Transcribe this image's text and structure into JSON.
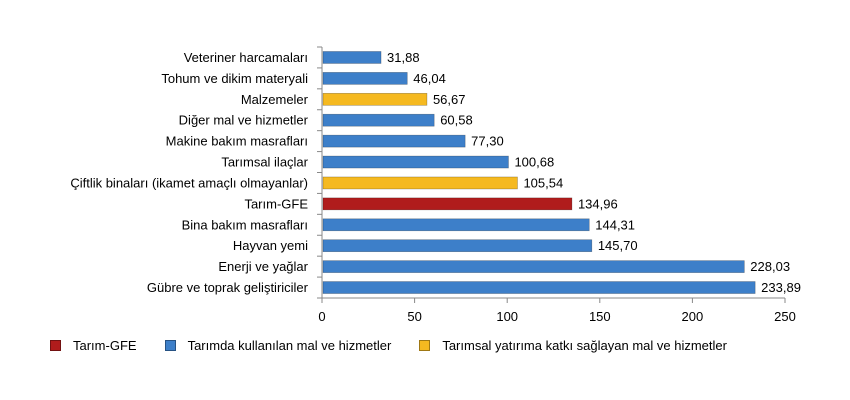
{
  "chart_data": {
    "type": "bar",
    "orientation": "horizontal",
    "categories": [
      "Veteriner harcamaları",
      "Tohum ve dikim materyali",
      "Malzemeler",
      "Diğer mal ve hizmetler",
      "Makine bakım masrafları",
      "Tarımsal ilaçlar",
      "Çiftlik binaları (ikamet amaçlı olmayanlar)",
      "Tarım-GFE",
      "Bina bakım masrafları",
      "Hayvan yemi",
      "Enerji ve yağlar",
      "Gübre ve toprak geliştiriciler"
    ],
    "values": [
      31.88,
      46.04,
      56.67,
      60.58,
      77.3,
      100.68,
      105.54,
      134.96,
      144.31,
      145.7,
      228.03,
      233.89
    ],
    "value_labels": [
      "31,88",
      "46,04",
      "56,67",
      "60,58",
      "77,30",
      "100,68",
      "105,54",
      "134,96",
      "144,31",
      "145,70",
      "228,03",
      "233,89"
    ],
    "groups": [
      "services",
      "services",
      "investment",
      "services",
      "services",
      "services",
      "investment",
      "index",
      "services",
      "services",
      "services",
      "services"
    ],
    "xlim": [
      0,
      250
    ],
    "xticks": [
      0,
      50,
      100,
      150,
      200,
      250
    ],
    "grid": false,
    "legend_position": "bottom",
    "legend": [
      {
        "key": "index",
        "label": "Tarım-GFE",
        "color": "#b01c1c"
      },
      {
        "key": "services",
        "label": "Tarımda kullanılan mal ve hizmetler",
        "color": "#3d7fc9"
      },
      {
        "key": "investment",
        "label": "Tarımsal yatırıma katkı sağlayan mal ve hizmetler",
        "color": "#f5b920"
      }
    ]
  }
}
